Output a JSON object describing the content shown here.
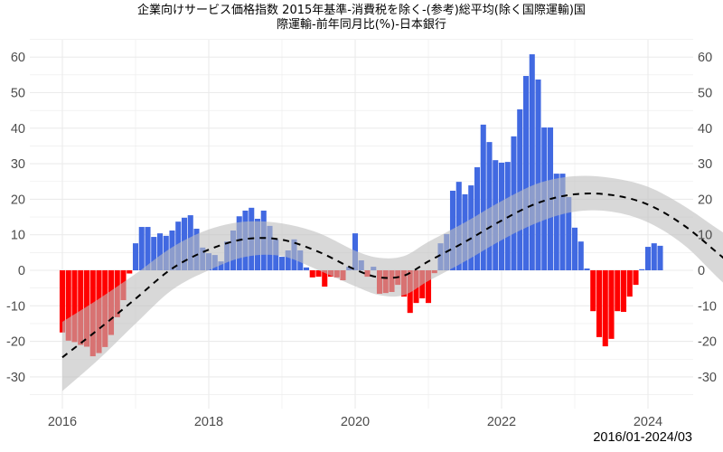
{
  "title": {
    "line1": "企業向けサービス価格指数 2015年基準-消費税を除く-(参考)総平均(除く国際運輸)国",
    "line2": "際運輸-前年同月比(%)-日本銀行"
  },
  "footer": {
    "period": "2016/01-2024/03"
  },
  "colors": {
    "positive": "#4169E1",
    "negative": "#FF0000",
    "band": "#BEBEBE",
    "trend": "#000000",
    "grid": "#EBEBEB"
  },
  "chart_data": {
    "type": "bar",
    "title": "企業向けサービス価格指数 2015年基準-消費税を除く-(参考)総平均(除く国際運輸)国際運輸-前年同月比(%)-日本銀行",
    "xlabel": "",
    "ylabel": "",
    "ylim": [
      -37,
      65
    ],
    "yticks": [
      -30,
      -20,
      -10,
      0,
      10,
      20,
      30,
      40,
      50,
      60
    ],
    "xticks": [
      "2016",
      "2018",
      "2020",
      "2022",
      "2024"
    ],
    "grid": true,
    "start": "2016-01",
    "end": "2024-03",
    "series": [
      {
        "name": "前年同月比(%)",
        "values": [
          -17.5,
          -19.8,
          -20.2,
          -21.0,
          -21.5,
          -24.2,
          -23.3,
          -21.6,
          -18.2,
          -13.2,
          -8.4,
          -0.9,
          7.6,
          12.2,
          12.2,
          9.4,
          10.4,
          9.7,
          11.2,
          13.7,
          14.8,
          15.5,
          11.7,
          6.4,
          4.8,
          4.3,
          2.5,
          8.1,
          11.2,
          15.2,
          16.8,
          17.6,
          14.5,
          16.8,
          12.5,
          8.7,
          3.8,
          5.6,
          8.7,
          5.6,
          0.8,
          -2.0,
          -1.8,
          -4.6,
          -1.8,
          -2.0,
          -2.8,
          1.0,
          10.4,
          2.8,
          -1.8,
          1.0,
          -6.6,
          -6.4,
          -6.1,
          -4.1,
          -7.4,
          -12.0,
          -9.2,
          -7.9,
          -9.2,
          -0.8,
          7.6,
          10.2,
          22.4,
          24.9,
          21.4,
          23.9,
          29.0,
          41.0,
          36.1,
          31.0,
          30.3,
          30.5,
          37.7,
          45.3,
          54.7,
          60.8,
          53.7,
          40.2,
          40.2,
          27.2,
          27.2,
          20.6,
          12.0,
          8.1,
          0.5,
          -11.5,
          -18.8,
          -21.4,
          -19.3,
          -11.5,
          -11.7,
          -7.4,
          -4.1,
          0.3,
          6.6,
          7.6,
          6.9
        ]
      },
      {
        "name": "LOESS trend",
        "style": "dashed",
        "points": [
          [
            0,
            -24.5
          ],
          [
            6,
            -16.5
          ],
          [
            12,
            -8.0
          ],
          [
            18,
            0.5
          ],
          [
            24,
            5.8
          ],
          [
            30,
            8.8
          ],
          [
            36,
            8.6
          ],
          [
            42,
            5.2
          ],
          [
            48,
            0.2
          ],
          [
            52,
            -2.0
          ],
          [
            56,
            -1.5
          ],
          [
            60,
            2.5
          ],
          [
            66,
            8.0
          ],
          [
            72,
            14.0
          ],
          [
            78,
            19.0
          ],
          [
            84,
            21.4
          ],
          [
            90,
            21.2
          ],
          [
            96,
            18.5
          ],
          [
            102,
            12.5
          ],
          [
            108,
            4.0
          ],
          [
            114,
            -4.5
          ],
          [
            122,
            -10.0
          ]
        ]
      },
      {
        "name": "confidence band",
        "upper": [
          [
            0,
            -14.5
          ],
          [
            6,
            -8.0
          ],
          [
            12,
            -1.0
          ],
          [
            18,
            6.5
          ],
          [
            24,
            11.5
          ],
          [
            30,
            13.7
          ],
          [
            36,
            13.2
          ],
          [
            42,
            10.5
          ],
          [
            48,
            5.5
          ],
          [
            52,
            3.5
          ],
          [
            56,
            4.0
          ],
          [
            60,
            8.0
          ],
          [
            66,
            13.5
          ],
          [
            72,
            19.5
          ],
          [
            78,
            24.5
          ],
          [
            84,
            26.5
          ],
          [
            90,
            26.0
          ],
          [
            96,
            23.5
          ],
          [
            102,
            18.0
          ],
          [
            108,
            11.0
          ],
          [
            114,
            4.5
          ],
          [
            122,
            -0.3
          ]
        ],
        "lower": [
          [
            0,
            -34.0
          ],
          [
            6,
            -25.0
          ],
          [
            12,
            -15.0
          ],
          [
            18,
            -5.5
          ],
          [
            24,
            0.0
          ],
          [
            30,
            3.8
          ],
          [
            36,
            4.0
          ],
          [
            42,
            0.0
          ],
          [
            48,
            -4.5
          ],
          [
            52,
            -7.0
          ],
          [
            56,
            -7.0
          ],
          [
            60,
            -3.0
          ],
          [
            66,
            2.5
          ],
          [
            72,
            8.5
          ],
          [
            78,
            13.5
          ],
          [
            84,
            16.5
          ],
          [
            90,
            16.5
          ],
          [
            96,
            13.5
          ],
          [
            102,
            7.0
          ],
          [
            108,
            -3.0
          ],
          [
            114,
            -12.0
          ],
          [
            122,
            -20.6
          ]
        ]
      }
    ]
  }
}
